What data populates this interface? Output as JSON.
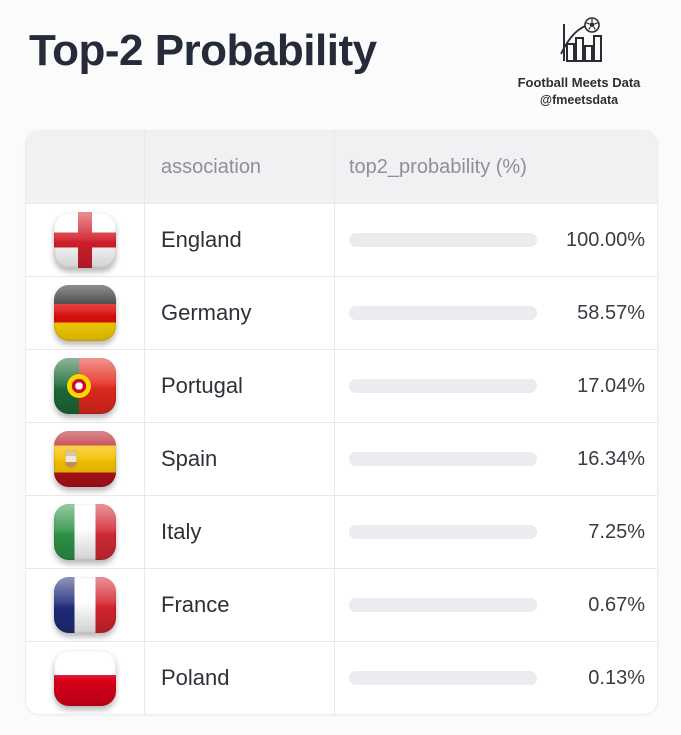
{
  "page": {
    "title": "Top-2 Probability"
  },
  "brand": {
    "name": "Football Meets Data",
    "handle": "@fmeetsdata",
    "icon": "bar-chart-with-football"
  },
  "table": {
    "headers": {
      "flag": "",
      "association": "association",
      "probability": "top2_probability (%)"
    },
    "rows": [
      {
        "flag": "england",
        "association": "England",
        "value": 100.0,
        "percent_label": "100.00%"
      },
      {
        "flag": "germany",
        "association": "Germany",
        "value": 58.57,
        "percent_label": "58.57%"
      },
      {
        "flag": "portugal",
        "association": "Portugal",
        "value": 17.04,
        "percent_label": "17.04%"
      },
      {
        "flag": "spain",
        "association": "Spain",
        "value": 16.34,
        "percent_label": "16.34%"
      },
      {
        "flag": "italy",
        "association": "Italy",
        "value": 7.25,
        "percent_label": "7.25%"
      },
      {
        "flag": "france",
        "association": "France",
        "value": 0.67,
        "percent_label": "0.67%"
      },
      {
        "flag": "poland",
        "association": "Poland",
        "value": 0.13,
        "percent_label": "0.13%"
      }
    ]
  },
  "colors": {
    "bar_fill": "#f8484e",
    "bar_track": "#ebebf0",
    "header_background": "#f1f1f3",
    "title_text": "#262b3a",
    "header_text": "#8f8f98",
    "body_text": "#303038",
    "row_border": "#e9e9ec",
    "page_background": "#fbfbfb"
  },
  "chart_data": {
    "type": "bar",
    "orientation": "horizontal",
    "categories": [
      "England",
      "Germany",
      "Portugal",
      "Spain",
      "Italy",
      "France",
      "Poland"
    ],
    "values": [
      100.0,
      58.57,
      17.04,
      16.34,
      7.25,
      0.67,
      0.13
    ],
    "title": "Top-2 Probability",
    "xlabel": "top2_probability (%)",
    "ylabel": "association",
    "xlim": [
      0,
      100
    ],
    "grid": false,
    "legend": false
  }
}
